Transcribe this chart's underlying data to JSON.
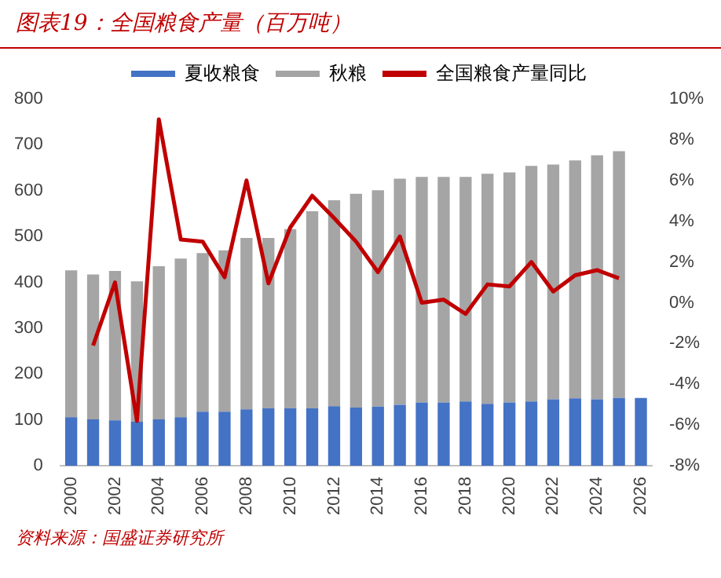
{
  "chart_data": {
    "type": "bar",
    "title": "图表19：全国粮食产量（百万吨）",
    "stacked": true,
    "categories": [
      "2000",
      null,
      "2002",
      null,
      "2004",
      null,
      "2006",
      null,
      "2008",
      null,
      "2010",
      null,
      "2012",
      null,
      "2014",
      null,
      "2016",
      null,
      "2018",
      null,
      "2020",
      null,
      "2022",
      null,
      "2024",
      null,
      "2026"
    ],
    "series": [
      {
        "name": "夏收粮食",
        "color": "#4472c4",
        "values": [
          106,
          101,
          99,
          96,
          101,
          106,
          118,
          118,
          123,
          125,
          125,
          125,
          130,
          127,
          129,
          133,
          138,
          138,
          140,
          135,
          138,
          140,
          145,
          147,
          145,
          148,
          148
        ]
      },
      {
        "name": "秋粮",
        "color": "#a5a5a5",
        "values": [
          320,
          316,
          326,
          306,
          334,
          346,
          346,
          352,
          374,
          372,
          391,
          430,
          449,
          466,
          472,
          493,
          492,
          492,
          490,
          502,
          502,
          514,
          512,
          519,
          532,
          538,
          null
        ]
      },
      {
        "name": "全国粮食产量同比",
        "type": "line",
        "axis": "y2",
        "color": "#c00000",
        "values": [
          null,
          -2.1,
          1.0,
          -5.8,
          9.0,
          3.1,
          3.0,
          1.25,
          6.0,
          0.95,
          3.7,
          5.25,
          4.15,
          3.0,
          1.5,
          3.25,
          0.0,
          0.15,
          -0.55,
          0.9,
          0.8,
          2.0,
          0.55,
          1.35,
          1.6,
          1.2,
          null
        ]
      }
    ],
    "ylim": [
      0,
      800
    ],
    "yticks": [
      0,
      100,
      200,
      300,
      400,
      500,
      600,
      700,
      800
    ],
    "y2lim": [
      -8,
      10
    ],
    "y2ticks": [
      {
        "value": -8,
        "label": "-8%"
      },
      {
        "value": -6,
        "label": "-6%"
      },
      {
        "value": -4,
        "label": "-4%"
      },
      {
        "value": -2,
        "label": "-2%"
      },
      {
        "value": 0,
        "label": "0%"
      },
      {
        "value": 2,
        "label": "2%"
      },
      {
        "value": 4,
        "label": "4%"
      },
      {
        "value": 6,
        "label": "6%"
      },
      {
        "value": 8,
        "label": "8%"
      },
      {
        "value": 10,
        "label": "10%"
      }
    ],
    "grid": false,
    "legend": "top",
    "marker": "none",
    "annotations": [
      "资料来源：国盛证券研究所"
    ]
  }
}
